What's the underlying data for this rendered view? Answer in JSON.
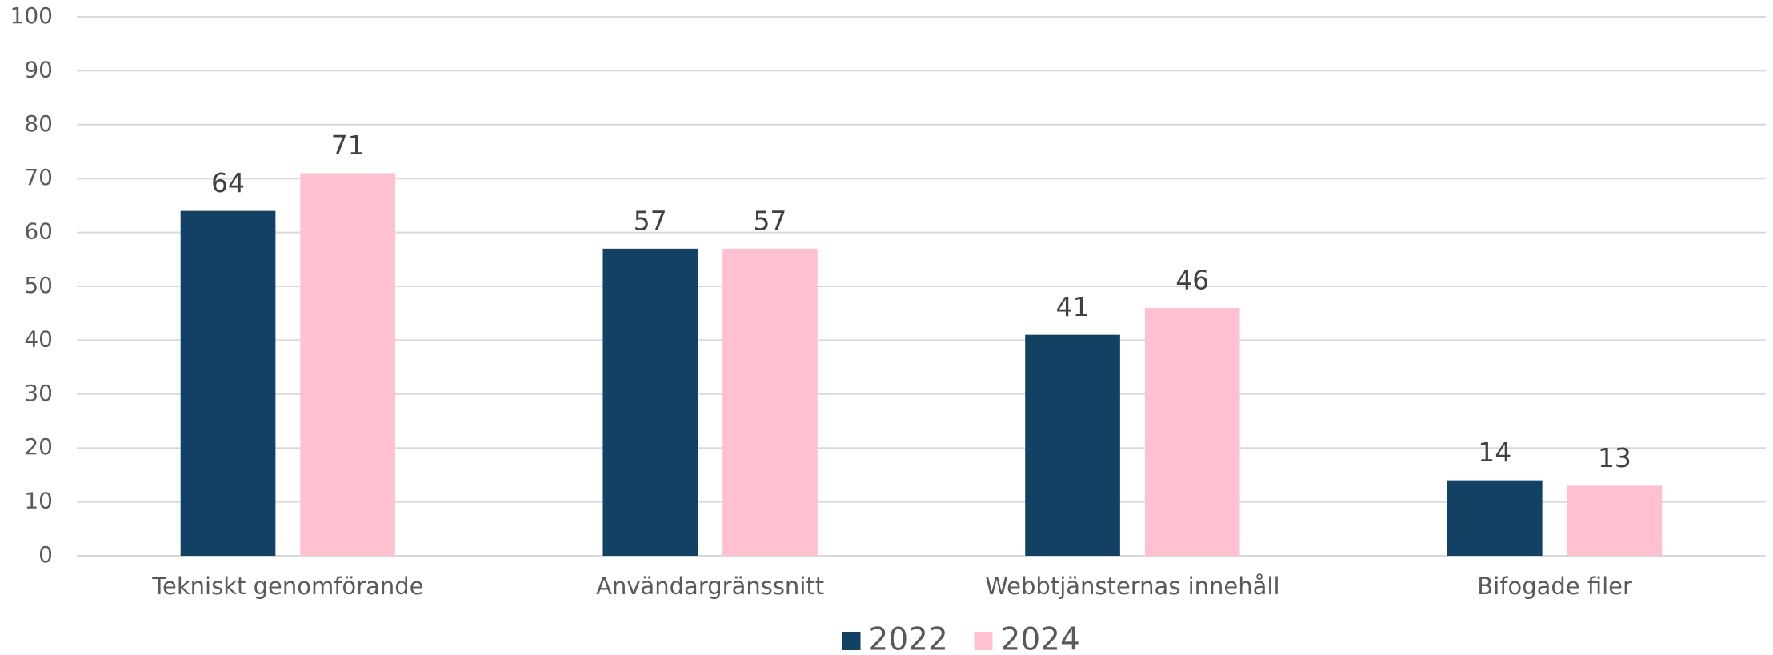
{
  "chart_data": {
    "type": "bar",
    "categories": [
      "Tekniskt genomförande",
      "Användargränssnitt",
      "Webbtjänsternas innehåll",
      "Bifogade filer"
    ],
    "series": [
      {
        "name": "2022",
        "color": "#124164",
        "values": [
          64,
          57,
          41,
          14
        ]
      },
      {
        "name": "2024",
        "color": "#ffc0cf",
        "values": [
          71,
          57,
          46,
          13
        ]
      }
    ],
    "ylim": [
      0,
      100
    ],
    "yticks": [
      0,
      10,
      20,
      30,
      40,
      50,
      60,
      70,
      80,
      90,
      100
    ],
    "grid": true,
    "legend": "bottom"
  }
}
